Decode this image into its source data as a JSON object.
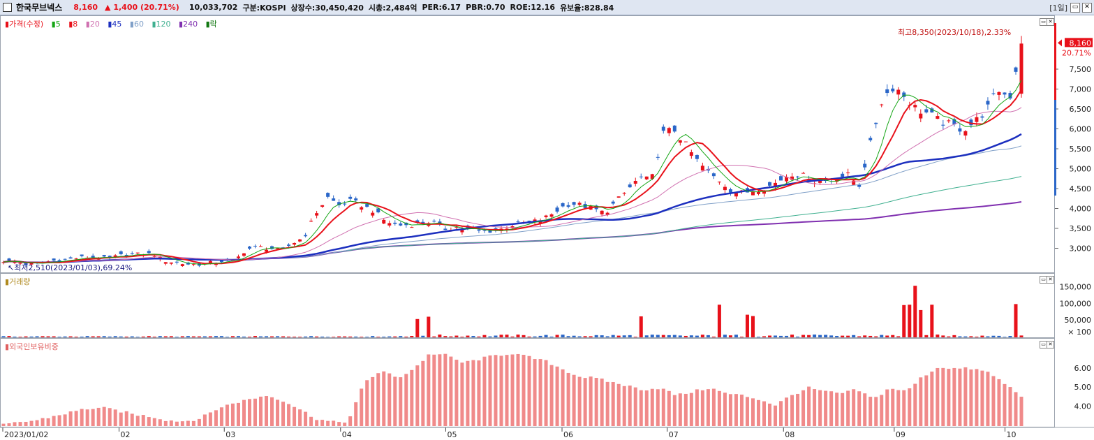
{
  "topbar": {
    "name": "한국무브넥스",
    "price": "8,160",
    "change": "▲ 1,400 (20.71%)",
    "volume": "10,033,702",
    "market": "구분:KOSPI",
    "shares": "상장수:30,450,420",
    "mcap": "시총:2,484억",
    "per": "PER:6.17",
    "pbr": "PBR:0.70",
    "roe": "ROE:12.16",
    "reserve": "유보율:828.84",
    "period": "[1일]",
    "restore_icon": "restore-icon",
    "close_icon": "close-icon"
  },
  "legend": {
    "price_label": "가격(수정)",
    "ma": [
      {
        "label": "5",
        "color": "#14a514"
      },
      {
        "label": "8",
        "color": "#e8111a"
      },
      {
        "label": "20",
        "color": "#d070b0"
      },
      {
        "label": "45",
        "color": "#1c2fbf"
      },
      {
        "label": "60",
        "color": "#80a0c8"
      },
      {
        "label": "120",
        "color": "#40b090"
      },
      {
        "label": "240",
        "color": "#8030b0"
      },
      {
        "label": "락",
        "color": "#117711"
      }
    ],
    "volume_label": "거래량",
    "foreign_label": "외국인보유비중"
  },
  "annotations": {
    "high": "최고8,350(2023/10/18),2.33%",
    "low": "최저2,510(2023/01/03),69.24%",
    "last_price": "8,160",
    "last_change": "20.71%"
  },
  "colors": {
    "up": "#e8111a",
    "down": "#2a66c8",
    "foreign": "#f08a8a",
    "blue_ma": "#1c2fbf",
    "purple_ma": "#8030b0"
  },
  "chart_data": [
    {
      "type": "candlestick",
      "title": "가격(수정)",
      "ylim": [
        2500,
        8500
      ],
      "yticks": [
        "3,000",
        "3,500",
        "4,000",
        "4,500",
        "5,000",
        "5,500",
        "6,000",
        "6,500",
        "7,000",
        "7,500"
      ],
      "xticks": [
        "2023/01/02",
        "02",
        "03",
        "04",
        "05",
        "06",
        "07",
        "08",
        "09",
        "10"
      ],
      "close_path": [
        2700,
        2680,
        2620,
        2630,
        2700,
        2720,
        2760,
        2800,
        2780,
        2760,
        2830,
        2850,
        2880,
        2860,
        2700,
        2650,
        2620,
        2610,
        2660,
        2700,
        2700,
        3000,
        3050,
        3020,
        2950,
        3150,
        3300,
        3900,
        4300,
        4100,
        4200,
        4100,
        3950,
        3700,
        3600,
        3600,
        3650,
        3700,
        3500,
        3550,
        3500,
        3450,
        3450,
        3500,
        3600,
        3650,
        3700,
        3800,
        4000,
        4150,
        4100,
        4000,
        3900,
        4200,
        4500,
        4800,
        4700,
        5900,
        6000,
        5600,
        5200,
        4900,
        4700,
        4450,
        4400,
        4500,
        4550,
        4700,
        4900,
        4850,
        4700,
        4700,
        4800,
        4850,
        4600,
        5700,
        6800,
        7100,
        6800,
        6500,
        6400,
        6200,
        6100,
        6000,
        6200,
        6500,
        7000,
        6800,
        8160
      ],
      "ma_levels": [
        {
          "name": "5",
          "last": 6900
        },
        {
          "name": "8",
          "last": 6700
        },
        {
          "name": "20",
          "last": 6400
        },
        {
          "name": "45",
          "last": 5550
        },
        {
          "name": "60",
          "last": 5400
        },
        {
          "name": "120",
          "last": 4550
        },
        {
          "name": "240",
          "last": 3650
        }
      ]
    },
    {
      "type": "bar",
      "title": "거래량",
      "ylim": [
        0,
        170000
      ],
      "yticks": [
        "150,000",
        "100,000",
        "50,000",
        "× 100"
      ],
      "spikes": [
        {
          "index": 74,
          "value": 55000
        },
        {
          "index": 76,
          "value": 62000
        },
        {
          "index": 114,
          "value": 63000
        },
        {
          "index": 128,
          "value": 98000
        },
        {
          "index": 133,
          "value": 68000
        },
        {
          "index": 134,
          "value": 64000
        },
        {
          "index": 161,
          "value": 97000
        },
        {
          "index": 162,
          "value": 98000
        },
        {
          "index": 163,
          "value": 155000
        },
        {
          "index": 164,
          "value": 82000
        },
        {
          "index": 166,
          "value": 98000
        },
        {
          "index": 181,
          "value": 100000
        }
      ]
    },
    {
      "type": "bar",
      "title": "외국인보유비중",
      "ylim": [
        3.0,
        7.2
      ],
      "yticks": [
        "6.00",
        "5.00",
        "4.00"
      ],
      "path": [
        3.05,
        3.2,
        3.3,
        3.5,
        3.7,
        3.9,
        3.95,
        3.8,
        3.6,
        3.5,
        3.3,
        3.25,
        3.4,
        3.9,
        4.2,
        4.4,
        4.6,
        4.35,
        3.9,
        3.4,
        3.2,
        3.25,
        5.3,
        5.9,
        5.5,
        6.0,
        6.8,
        6.7,
        6.3,
        6.5,
        6.7,
        6.8,
        6.6,
        6.4,
        6.0,
        5.6,
        5.5,
        5.3,
        5.1,
        4.9,
        5.0,
        4.6,
        4.8,
        5.0,
        4.7,
        4.6,
        4.4,
        4.1,
        4.6,
        5.0,
        4.8,
        4.7,
        4.9,
        4.4,
        5.0,
        4.8,
        5.6,
        6.1,
        6.0,
        6.0,
        5.8,
        5.2,
        4.6
      ]
    }
  ]
}
